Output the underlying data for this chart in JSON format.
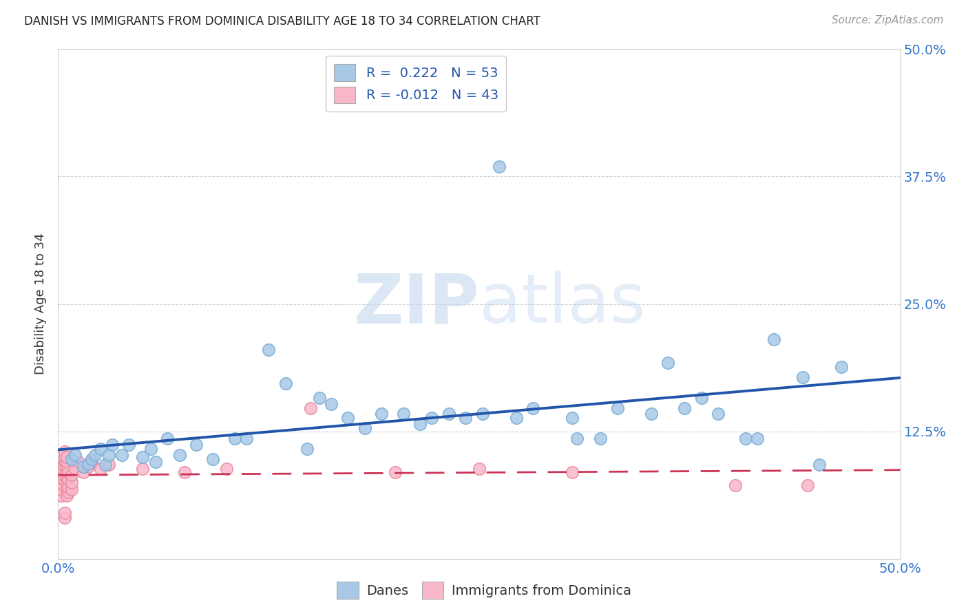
{
  "title": "DANISH VS IMMIGRANTS FROM DOMINICA DISABILITY AGE 18 TO 34 CORRELATION CHART",
  "source": "Source: ZipAtlas.com",
  "ylabel": "Disability Age 18 to 34",
  "xlim": [
    0.0,
    0.5
  ],
  "ylim": [
    0.0,
    0.5
  ],
  "x_ticks": [
    0.0,
    0.1,
    0.2,
    0.3,
    0.4,
    0.5
  ],
  "x_tick_labels": [
    "0.0%",
    "",
    "",
    "",
    "",
    "50.0%"
  ],
  "y_ticks": [
    0.0,
    0.125,
    0.25,
    0.375,
    0.5
  ],
  "y_tick_labels": [
    "",
    "12.5%",
    "25.0%",
    "37.5%",
    "50.0%"
  ],
  "danes_R": 0.222,
  "danes_N": 53,
  "immigrants_R": -0.012,
  "immigrants_N": 43,
  "danes_color": "#a8c8e8",
  "danes_edge_color": "#7aadd4",
  "danes_line_color": "#2255aa",
  "immigrants_color": "#f9b8ca",
  "immigrants_edge_color": "#e88aa0",
  "immigrants_line_color": "#cc3355",
  "watermark_color": "#ddeeff",
  "background_color": "#ffffff",
  "grid_color": "#cccccc",
  "danes_x": [
    0.008,
    0.01,
    0.015,
    0.018,
    0.02,
    0.022,
    0.025,
    0.028,
    0.03,
    0.032,
    0.038,
    0.042,
    0.05,
    0.055,
    0.058,
    0.065,
    0.072,
    0.082,
    0.092,
    0.105,
    0.112,
    0.125,
    0.135,
    0.148,
    0.155,
    0.162,
    0.172,
    0.182,
    0.192,
    0.205,
    0.215,
    0.222,
    0.232,
    0.242,
    0.252,
    0.262,
    0.272,
    0.282,
    0.305,
    0.308,
    0.322,
    0.332,
    0.352,
    0.362,
    0.372,
    0.382,
    0.392,
    0.408,
    0.415,
    0.425,
    0.442,
    0.452,
    0.465
  ],
  "danes_y": [
    0.098,
    0.102,
    0.09,
    0.093,
    0.098,
    0.102,
    0.108,
    0.092,
    0.102,
    0.112,
    0.102,
    0.112,
    0.1,
    0.108,
    0.095,
    0.118,
    0.102,
    0.112,
    0.098,
    0.118,
    0.118,
    0.205,
    0.172,
    0.108,
    0.158,
    0.152,
    0.138,
    0.128,
    0.142,
    0.142,
    0.132,
    0.138,
    0.142,
    0.138,
    0.142,
    0.385,
    0.138,
    0.148,
    0.138,
    0.118,
    0.118,
    0.148,
    0.142,
    0.192,
    0.148,
    0.158,
    0.142,
    0.118,
    0.118,
    0.215,
    0.178,
    0.092,
    0.188
  ],
  "immigrants_x": [
    0.002,
    0.002,
    0.002,
    0.003,
    0.003,
    0.003,
    0.003,
    0.004,
    0.004,
    0.004,
    0.004,
    0.004,
    0.005,
    0.005,
    0.005,
    0.005,
    0.005,
    0.005,
    0.005,
    0.005,
    0.006,
    0.006,
    0.006,
    0.006,
    0.008,
    0.008,
    0.008,
    0.01,
    0.012,
    0.015,
    0.018,
    0.02,
    0.025,
    0.03,
    0.05,
    0.075,
    0.1,
    0.15,
    0.2,
    0.25,
    0.305,
    0.402,
    0.445
  ],
  "immigrants_y": [
    0.062,
    0.068,
    0.074,
    0.078,
    0.082,
    0.088,
    0.092,
    0.04,
    0.045,
    0.095,
    0.1,
    0.105,
    0.062,
    0.068,
    0.075,
    0.08,
    0.085,
    0.09,
    0.095,
    0.1,
    0.065,
    0.07,
    0.078,
    0.085,
    0.068,
    0.075,
    0.082,
    0.088,
    0.095,
    0.085,
    0.09,
    0.095,
    0.088,
    0.092,
    0.088,
    0.085,
    0.088,
    0.148,
    0.085,
    0.088,
    0.085,
    0.072,
    0.072
  ]
}
